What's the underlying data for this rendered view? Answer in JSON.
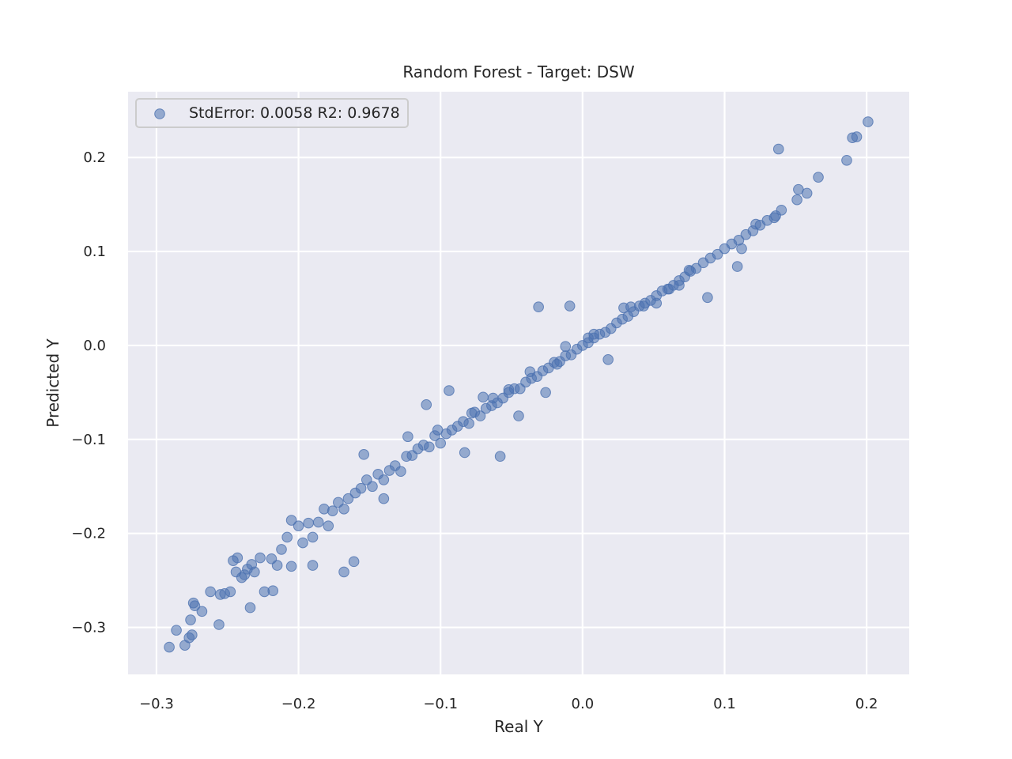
{
  "chart_data": {
    "type": "scatter",
    "title": "Random Forest - Target: DSW",
    "xlabel": "Real Y",
    "ylabel": "Predicted Y",
    "xlim": [
      -0.32,
      0.23
    ],
    "ylim": [
      -0.35,
      0.27
    ],
    "xticks": [
      -0.3,
      -0.2,
      -0.1,
      0.0,
      0.1,
      0.2
    ],
    "xtick_labels": [
      "−0.3",
      "−0.2",
      "−0.1",
      "0.0",
      "0.1",
      "0.2"
    ],
    "yticks": [
      -0.3,
      -0.2,
      -0.1,
      0.0,
      0.1,
      0.2
    ],
    "ytick_labels": [
      "−0.3",
      "−0.2",
      "−0.1",
      "0.0",
      "0.1",
      "0.2"
    ],
    "grid": true,
    "legend": {
      "placement": "upper-left",
      "label": "StdError: 0.0058 R2: 0.9678"
    },
    "colors": {
      "point": "#4c72b0",
      "background": "#eaeaf2",
      "grid": "#ffffff"
    },
    "point_alpha": 0.55,
    "x": [
      -0.291,
      -0.286,
      -0.28,
      -0.277,
      -0.274,
      -0.276,
      -0.273,
      -0.275,
      -0.268,
      -0.262,
      -0.256,
      -0.255,
      -0.248,
      -0.246,
      -0.244,
      -0.24,
      -0.238,
      -0.236,
      -0.233,
      -0.231,
      -0.227,
      -0.224,
      -0.219,
      -0.215,
      -0.212,
      -0.208,
      -0.205,
      -0.2,
      -0.197,
      -0.193,
      -0.19,
      -0.186,
      -0.182,
      -0.179,
      -0.176,
      -0.172,
      -0.168,
      -0.165,
      -0.16,
      -0.156,
      -0.152,
      -0.148,
      -0.144,
      -0.14,
      -0.136,
      -0.132,
      -0.128,
      -0.124,
      -0.12,
      -0.116,
      -0.112,
      -0.108,
      -0.104,
      -0.1,
      -0.096,
      -0.092,
      -0.088,
      -0.084,
      -0.08,
      -0.076,
      -0.072,
      -0.068,
      -0.064,
      -0.06,
      -0.056,
      -0.052,
      -0.048,
      -0.044,
      -0.04,
      -0.036,
      -0.032,
      -0.028,
      -0.024,
      -0.02,
      -0.016,
      -0.012,
      -0.008,
      -0.004,
      0.0,
      0.004,
      0.008,
      0.012,
      0.016,
      0.02,
      0.024,
      0.028,
      0.032,
      0.036,
      0.04,
      0.044,
      0.048,
      0.052,
      0.056,
      0.06,
      0.064,
      0.068,
      0.072,
      0.076,
      0.08,
      0.085,
      0.09,
      0.095,
      0.1,
      0.105,
      0.11,
      0.115,
      0.12,
      0.125,
      0.13,
      0.135,
      0.14,
      0.152,
      0.158,
      0.166,
      0.186,
      0.19,
      0.193,
      0.201,
      0.138,
      0.112,
      -0.031,
      -0.009,
      -0.161,
      -0.154,
      -0.058,
      -0.168,
      -0.234,
      -0.19,
      -0.205,
      -0.218,
      -0.252,
      -0.243,
      -0.11,
      -0.14,
      -0.094,
      -0.063,
      -0.083,
      -0.045,
      -0.026,
      0.018,
      0.034,
      0.052,
      0.075,
      0.088,
      0.109,
      0.122,
      0.136,
      0.151,
      -0.123,
      -0.07,
      -0.037,
      -0.012,
      0.008,
      0.029,
      0.061,
      -0.102,
      -0.078,
      -0.052,
      -0.018,
      0.004,
      0.043,
      0.068
    ],
    "y": [
      -0.321,
      -0.303,
      -0.319,
      -0.311,
      -0.274,
      -0.292,
      -0.277,
      -0.308,
      -0.283,
      -0.262,
      -0.297,
      -0.265,
      -0.262,
      -0.229,
      -0.241,
      -0.247,
      -0.244,
      -0.238,
      -0.233,
      -0.241,
      -0.226,
      -0.262,
      -0.227,
      -0.234,
      -0.217,
      -0.204,
      -0.186,
      -0.192,
      -0.21,
      -0.189,
      -0.204,
      -0.188,
      -0.174,
      -0.192,
      -0.176,
      -0.167,
      -0.174,
      -0.163,
      -0.157,
      -0.152,
      -0.143,
      -0.15,
      -0.137,
      -0.143,
      -0.133,
      -0.128,
      -0.134,
      -0.118,
      -0.117,
      -0.11,
      -0.106,
      -0.108,
      -0.096,
      -0.104,
      -0.094,
      -0.09,
      -0.086,
      -0.081,
      -0.083,
      -0.071,
      -0.075,
      -0.067,
      -0.064,
      -0.061,
      -0.056,
      -0.05,
      -0.046,
      -0.046,
      -0.039,
      -0.035,
      -0.033,
      -0.027,
      -0.024,
      -0.018,
      -0.017,
      -0.011,
      -0.01,
      -0.004,
      0.0,
      0.003,
      0.008,
      0.012,
      0.014,
      0.018,
      0.024,
      0.028,
      0.031,
      0.036,
      0.042,
      0.045,
      0.048,
      0.053,
      0.058,
      0.06,
      0.064,
      0.069,
      0.073,
      0.079,
      0.082,
      0.088,
      0.093,
      0.097,
      0.103,
      0.108,
      0.112,
      0.118,
      0.122,
      0.128,
      0.133,
      0.136,
      0.144,
      0.166,
      0.162,
      0.179,
      0.197,
      0.221,
      0.222,
      0.238,
      0.209,
      0.103,
      0.041,
      0.042,
      -0.23,
      -0.116,
      -0.118,
      -0.241,
      -0.279,
      -0.234,
      -0.235,
      -0.261,
      -0.264,
      -0.226,
      -0.063,
      -0.163,
      -0.048,
      -0.056,
      -0.114,
      -0.075,
      -0.05,
      -0.015,
      0.041,
      0.045,
      0.08,
      0.051,
      0.084,
      0.129,
      0.138,
      0.155,
      -0.097,
      -0.055,
      -0.028,
      -0.001,
      0.012,
      0.04,
      0.06,
      -0.09,
      -0.072,
      -0.047,
      -0.02,
      0.008,
      0.042,
      0.064
    ]
  }
}
